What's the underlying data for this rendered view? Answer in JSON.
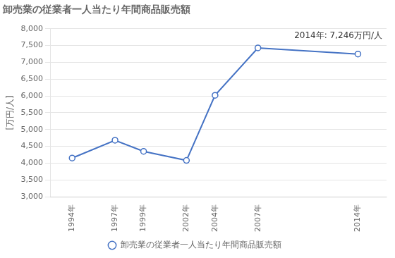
{
  "chart_data": {
    "type": "line",
    "title": "卸売業の従業者一人当たり年間商品販売額",
    "ylabel": "[万円/人]",
    "annotation": "2014年: 7,246万円/人",
    "x": [
      1994,
      1997,
      1999,
      2002,
      2004,
      2007,
      2014
    ],
    "series": [
      {
        "name": "卸売業の従業者一人当たり年間商品販売額",
        "color": "#4472C4",
        "marker": "circle",
        "values": [
          4150,
          4680,
          4350,
          4080,
          6020,
          7430,
          7246
        ]
      }
    ],
    "xlim": [
      1992.5,
      2016.0
    ],
    "xticks": [
      {
        "value": 1994,
        "label": "1994年"
      },
      {
        "value": 1997,
        "label": "1997年"
      },
      {
        "value": 1999,
        "label": "1999年"
      },
      {
        "value": 2002,
        "label": "2002年"
      },
      {
        "value": 2004,
        "label": "2004年"
      },
      {
        "value": 2007,
        "label": "2007年"
      },
      {
        "value": 2014,
        "label": "2014年"
      }
    ],
    "ylim": [
      3000,
      8000
    ],
    "yticks": [
      {
        "value": 3000,
        "label": "3,000"
      },
      {
        "value": 3500,
        "label": "3,500"
      },
      {
        "value": 4000,
        "label": "4,000"
      },
      {
        "value": 4500,
        "label": "4,500"
      },
      {
        "value": 5000,
        "label": "5,000"
      },
      {
        "value": 5500,
        "label": "5,500"
      },
      {
        "value": 6000,
        "label": "6,000"
      },
      {
        "value": 6500,
        "label": "6,500"
      },
      {
        "value": 7000,
        "label": "7,000"
      },
      {
        "value": 7500,
        "label": "7,500"
      },
      {
        "value": 8000,
        "label": "8,000"
      }
    ],
    "grid": "y",
    "legend": "bottom"
  }
}
